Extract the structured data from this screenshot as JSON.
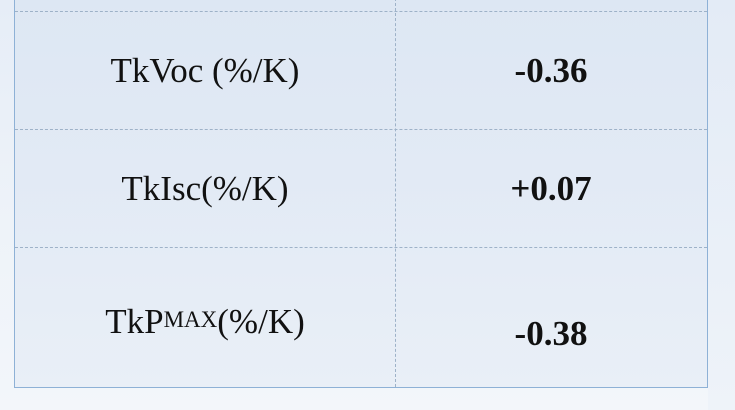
{
  "table": {
    "rows": [
      {
        "label": "TkVoc (%/K)",
        "value": "-0.36"
      },
      {
        "label": "TkIsc(%/K)",
        "value": "+0.07"
      },
      {
        "label_prefix": "TkP",
        "label_sub": "MAX",
        "label_suffix": "(%/K)",
        "value": "-0.38"
      }
    ]
  }
}
